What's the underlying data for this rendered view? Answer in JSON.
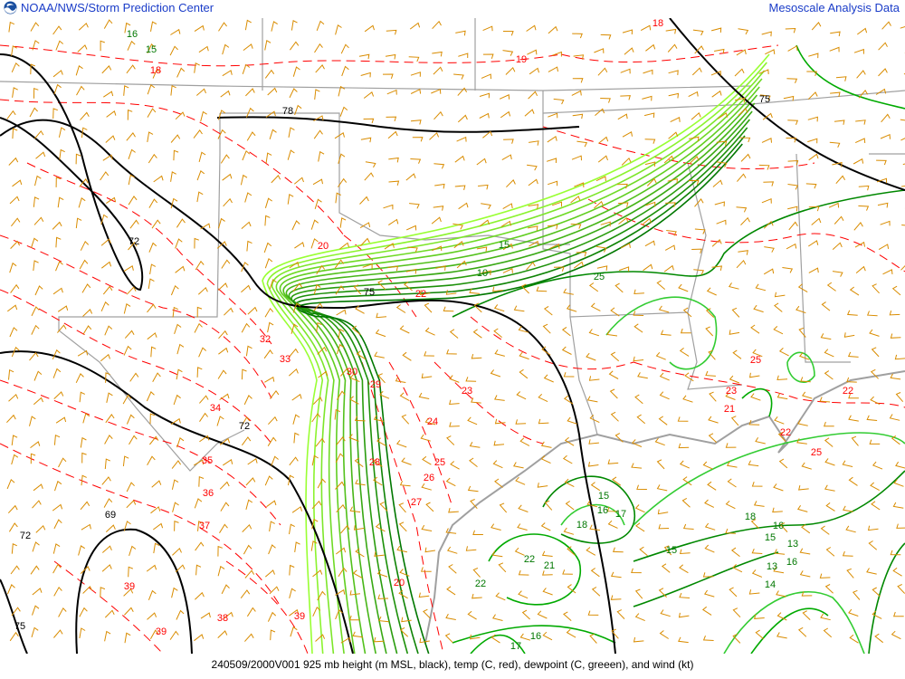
{
  "header": {
    "org_title": "NOAA/NWS/Storm Prediction Center",
    "product_title": "Mesoscale Analysis Data",
    "logo_icon": "noaa-logo-icon"
  },
  "footer": {
    "caption": "240509/2000V001 925 mb height (m MSL, black), temp (C, red), dewpoint (C, greeen), and wind (kt)"
  },
  "colors": {
    "height": "#000000",
    "temperature": "#ff0000",
    "dewpoint_light": "#99ff33",
    "dewpoint_dark": "#007700",
    "wind": "#d98c00",
    "borders": "#a0a0a0",
    "title_text": "#1a3cc8"
  },
  "labels": {
    "height": [
      "78",
      "75",
      "72",
      "72",
      "69",
      "72",
      "75",
      "75"
    ],
    "temperature": [
      "18",
      "18",
      "19",
      "20",
      "22",
      "32",
      "33",
      "34",
      "35",
      "36",
      "37",
      "39",
      "38",
      "39",
      "39",
      "30",
      "29",
      "28",
      "26",
      "27",
      "24",
      "25",
      "23",
      "25",
      "23",
      "21",
      "22",
      "22",
      "20",
      "25"
    ],
    "dewpoint": [
      "15",
      "16",
      "15",
      "10",
      "25",
      "18",
      "16",
      "17",
      "15",
      "22",
      "21",
      "22",
      "18",
      "16",
      "15",
      "13",
      "16",
      "13",
      "14",
      "16",
      "17",
      "15"
    ]
  }
}
